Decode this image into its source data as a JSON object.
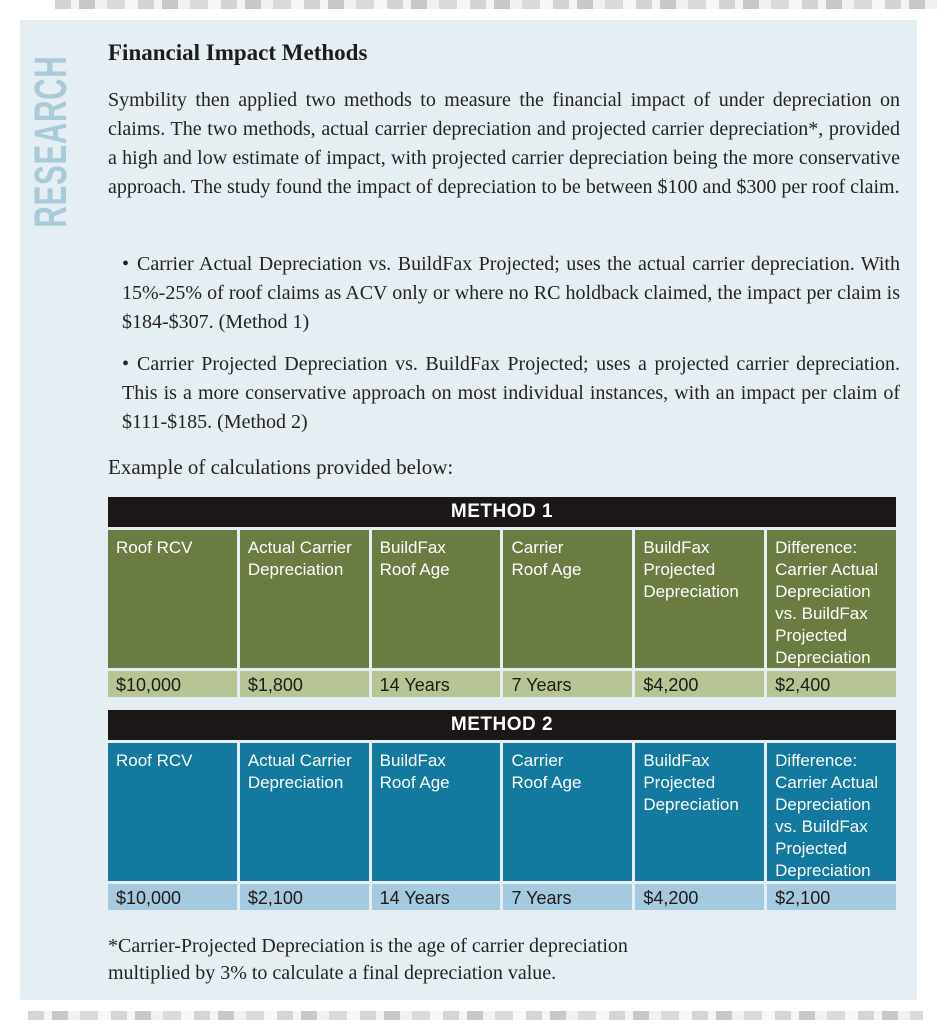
{
  "page": {
    "sidebar_label": "RESEARCH",
    "title": "Financial Impact Methods",
    "intro_paragraph": "Symbility then applied two methods to measure the financial impact of under depreciation on claims. The two methods, actual carrier depreciation and projected carrier depreciation*, provided a high and low estimate of impact, with projected carrier depreciation being the more conservative approach. The study found the impact of depreciation to be between $100 and $300 per roof claim.",
    "bullet_marker": "•",
    "bullets": [
      "Carrier Actual Depreciation vs. BuildFax Projected; uses the actual carrier depreciation. With 15%-25% of roof claims as ACV only or where no RC holdback claimed, the impact per claim is $184-$307. (Method 1)",
      "Carrier Projected Depreciation vs. BuildFax Projected; uses a projected carrier depreciation. This is a more conservative approach on most individual instances, with an impact per claim of $111-$185. (Method 2)"
    ],
    "example_caption": "Example of calculations provided below:",
    "footnote": {
      "line1": "*Carrier-Projected Depreciation is the age of carrier depreciation",
      "line2": "multiplied by 3% to calculate a final depreciation value."
    }
  },
  "tables": [
    {
      "title": "METHOD 1",
      "columns": [
        "Roof RCV",
        "Actual Carrier\nDepreciation",
        "BuildFax\nRoof Age",
        "Carrier\nRoof Age",
        "BuildFax\nProjected\nDepreciation",
        "Difference:\nCarrier Actual\nDepreciation\nvs. BuildFax\nProjected\nDepreciation"
      ],
      "values": [
        "$10,000",
        "$1,800",
        "14 Years",
        "7 Years",
        "$4,200",
        "$2,400"
      ]
    },
    {
      "title": "METHOD 2",
      "columns": [
        "Roof RCV",
        "Actual Carrier\nDepreciation",
        "BuildFax\nRoof Age",
        "Carrier\nRoof Age",
        "BuildFax\nProjected\nDepreciation",
        "Difference:\nCarrier Actual\nDepreciation\nvs. BuildFax\nProjected\nDepreciation"
      ],
      "values": [
        "$10,000",
        "$2,100",
        "14 Years",
        "7 Years",
        "$4,200",
        "$2,100"
      ]
    }
  ],
  "colors": {
    "panel_background": "#e4eef3",
    "sidebar_label_text": "#a9cbd9",
    "table_title_bar": "#1a1716",
    "method1_header": "#6b7c42",
    "method1_row": "#b7c595",
    "method2_header": "#13799e",
    "method2_row": "#a5c9de",
    "body_text": "#262220"
  }
}
